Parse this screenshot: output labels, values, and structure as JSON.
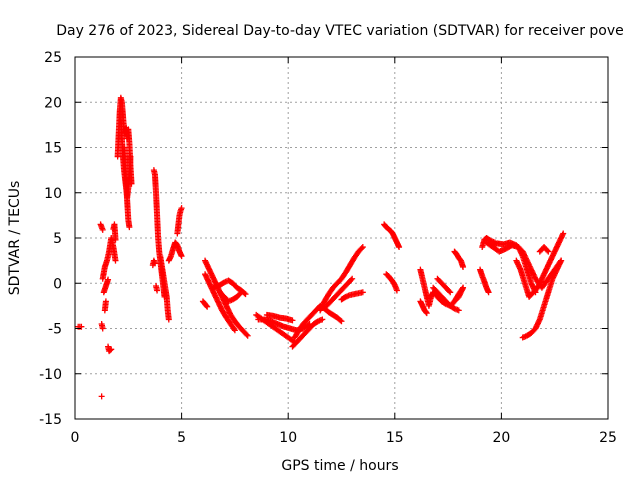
{
  "chart_data": {
    "type": "scatter",
    "title": "Day 276 of 2023, Sidereal Day-to-day VTEC variation (SDTVAR) for receiver pove",
    "xlabel": "GPS time / hours",
    "ylabel": "SDTVAR / TECUs",
    "xlim": [
      0,
      25
    ],
    "ylim": [
      -15,
      25
    ],
    "xticks": [
      0,
      5,
      10,
      15,
      20,
      25
    ],
    "yticks": [
      -15,
      -10,
      -5,
      0,
      5,
      10,
      15,
      20,
      25
    ],
    "grid": true,
    "marker": "+",
    "color": "#ff0000",
    "segments": [
      {
        "x": [
          0.15,
          0.3
        ],
        "y": [
          -4.8,
          -4.8
        ]
      },
      {
        "x": [
          1.2,
          1.25,
          1.3
        ],
        "y": [
          6.5,
          6.2,
          5.9
        ]
      },
      {
        "x": [
          1.25,
          1.3
        ],
        "y": [
          -4.5,
          -5.0
        ]
      },
      {
        "x": [
          1.25
        ],
        "y": [
          -12.5
        ]
      },
      {
        "x": [
          1.3,
          1.4,
          1.5,
          1.6,
          1.7,
          1.8,
          1.9
        ],
        "y": [
          0.5,
          1.8,
          2.5,
          3.5,
          5.0,
          4.0,
          2.5
        ]
      },
      {
        "x": [
          1.35,
          1.45,
          1.55
        ],
        "y": [
          -1.0,
          -0.3,
          0.4
        ]
      },
      {
        "x": [
          1.4,
          1.45
        ],
        "y": [
          -3.0,
          -2.0
        ]
      },
      {
        "x": [
          1.55,
          1.6,
          1.7
        ],
        "y": [
          -7.0,
          -7.5,
          -7.3
        ]
      },
      {
        "x": [
          1.8,
          1.85,
          1.9
        ],
        "y": [
          6.0,
          6.5,
          4.8
        ]
      },
      {
        "x": [
          2.0,
          2.05,
          2.1,
          2.15,
          2.2,
          2.25,
          2.3,
          2.35,
          2.4,
          2.45
        ],
        "y": [
          14.0,
          16.5,
          19.0,
          20.5,
          20.0,
          18.5,
          17.0,
          16.5,
          17.2,
          16.0
        ]
      },
      {
        "x": [
          2.15,
          2.2,
          2.25,
          2.3,
          2.35,
          2.4,
          2.45,
          2.5,
          2.55,
          2.6
        ],
        "y": [
          18.0,
          16.0,
          14.0,
          12.5,
          11.5,
          10.5,
          9.5,
          10.5,
          12.0,
          14.0
        ]
      },
      {
        "x": [
          2.3,
          2.35,
          2.4,
          2.45,
          2.5,
          2.55
        ],
        "y": [
          15.0,
          13.0,
          11.0,
          9.0,
          7.0,
          6.2
        ]
      },
      {
        "x": [
          2.5,
          2.55,
          2.6,
          2.65
        ],
        "y": [
          17.0,
          15.5,
          13.0,
          11.0
        ]
      },
      {
        "x": [
          3.7,
          3.75,
          3.8,
          3.85,
          3.9,
          3.95,
          4.0,
          4.05,
          4.1,
          4.15,
          4.2
        ],
        "y": [
          12.5,
          12.0,
          10.0,
          7.5,
          5.0,
          3.5,
          2.5,
          1.5,
          0.5,
          -0.5,
          -1.5
        ]
      },
      {
        "x": [
          3.65,
          3.7,
          3.75
        ],
        "y": [
          2.0,
          2.5,
          2.2
        ]
      },
      {
        "x": [
          3.8,
          3.85
        ],
        "y": [
          -0.3,
          -0.8
        ]
      },
      {
        "x": [
          4.0,
          4.1,
          4.2,
          4.3,
          4.35,
          4.4
        ],
        "y": [
          3.0,
          1.5,
          0.0,
          -1.5,
          -3.0,
          -4.0
        ]
      },
      {
        "x": [
          4.4,
          4.5,
          4.6,
          4.7,
          4.8,
          4.9,
          5.0
        ],
        "y": [
          2.5,
          3.0,
          3.8,
          4.5,
          4.2,
          3.5,
          3.0
        ]
      },
      {
        "x": [
          4.8,
          4.85,
          4.9,
          4.95,
          5.0
        ],
        "y": [
          5.5,
          6.5,
          7.5,
          8.0,
          8.3
        ]
      },
      {
        "x": [
          6.0,
          6.1,
          6.2
        ],
        "y": [
          -2.0,
          -2.3,
          -2.6
        ]
      },
      {
        "x": [
          6.1,
          6.3,
          6.5,
          6.7,
          6.9,
          7.1,
          7.3,
          7.5,
          7.7,
          7.9,
          8.1
        ],
        "y": [
          2.5,
          1.5,
          0.5,
          -0.5,
          -1.5,
          -2.5,
          -3.5,
          -4.2,
          -4.8,
          -5.3,
          -5.8
        ]
      },
      {
        "x": [
          6.1,
          6.3,
          6.5,
          6.7,
          6.9,
          7.1,
          7.3,
          7.5
        ],
        "y": [
          1.0,
          0.0,
          -1.0,
          -2.0,
          -3.0,
          -3.8,
          -4.5,
          -5.2
        ]
      },
      {
        "x": [
          6.5,
          6.8,
          7.0,
          7.2,
          7.4,
          7.6,
          7.8,
          8.0
        ],
        "y": [
          -0.5,
          -0.2,
          0.1,
          0.3,
          0.0,
          -0.5,
          -0.8,
          -1.2
        ]
      },
      {
        "x": [
          6.8,
          7.0,
          7.2,
          7.4,
          7.6,
          7.8
        ],
        "y": [
          -1.0,
          -1.5,
          -2.0,
          -1.8,
          -1.5,
          -1.0
        ]
      },
      {
        "x": [
          8.5,
          8.8,
          9.1,
          9.4,
          9.7,
          10.0,
          10.3
        ],
        "y": [
          -3.5,
          -4.0,
          -4.5,
          -5.0,
          -5.5,
          -6.0,
          -6.5
        ]
      },
      {
        "x": [
          8.6,
          8.9,
          9.2,
          9.5,
          9.8,
          10.1,
          10.4,
          10.7,
          11.0
        ],
        "y": [
          -4.0,
          -4.0,
          -4.2,
          -4.5,
          -4.8,
          -5.0,
          -5.2,
          -5.0,
          -4.5
        ]
      },
      {
        "x": [
          9.0,
          9.3,
          9.6,
          9.9,
          10.2
        ],
        "y": [
          -3.5,
          -3.6,
          -3.8,
          -3.9,
          -4.1
        ]
      },
      {
        "x": [
          10.2,
          10.4,
          10.6,
          10.8,
          11.0,
          11.2,
          11.4,
          11.6
        ],
        "y": [
          -7.0,
          -6.5,
          -6.0,
          -5.5,
          -5.0,
          -4.5,
          -4.2,
          -4.0
        ]
      },
      {
        "x": [
          10.3,
          10.5,
          10.7,
          10.9,
          11.1,
          11.3,
          11.5,
          11.7,
          11.9,
          12.1,
          12.3,
          12.5
        ],
        "y": [
          -6.0,
          -5.2,
          -4.5,
          -4.0,
          -3.5,
          -3.0,
          -2.5,
          -2.8,
          -3.2,
          -3.5,
          -3.8,
          -4.2
        ]
      },
      {
        "x": [
          11.5,
          11.7,
          11.9,
          12.1,
          12.3,
          12.5,
          12.7,
          12.9,
          13.1,
          13.3,
          13.5
        ],
        "y": [
          -3.0,
          -2.0,
          -1.2,
          -0.5,
          0.0,
          0.5,
          1.2,
          2.0,
          2.8,
          3.5,
          4.0
        ]
      },
      {
        "x": [
          11.8,
          12.0,
          12.2,
          12.4,
          12.6,
          12.8,
          13.0
        ],
        "y": [
          -2.5,
          -2.0,
          -1.5,
          -1.0,
          -0.5,
          0.0,
          0.5
        ]
      },
      {
        "x": [
          12.5,
          12.7,
          12.9,
          13.1,
          13.3,
          13.5
        ],
        "y": [
          -1.8,
          -1.5,
          -1.3,
          -1.2,
          -1.1,
          -1.0
        ]
      },
      {
        "x": [
          14.5,
          14.6,
          14.7,
          14.8,
          14.9,
          15.0,
          15.1,
          15.2
        ],
        "y": [
          6.5,
          6.2,
          6.0,
          5.8,
          5.5,
          5.0,
          4.5,
          4.0
        ]
      },
      {
        "x": [
          14.6,
          14.7,
          14.8,
          14.9,
          15.0,
          15.1
        ],
        "y": [
          1.0,
          0.8,
          0.5,
          0.2,
          -0.2,
          -0.8
        ]
      },
      {
        "x": [
          16.2,
          16.3,
          16.4,
          16.5,
          16.6,
          16.7,
          16.8,
          17.0,
          17.2,
          17.4,
          17.6,
          17.8,
          18.0,
          18.2
        ],
        "y": [
          1.5,
          0.5,
          -0.5,
          -1.5,
          -2.5,
          -1.5,
          -1.0,
          -1.5,
          -2.0,
          -2.3,
          -2.5,
          -2.0,
          -1.5,
          -0.5
        ]
      },
      {
        "x": [
          16.2,
          16.3,
          16.4,
          16.5
        ],
        "y": [
          -2.0,
          -2.5,
          -3.0,
          -3.3
        ]
      },
      {
        "x": [
          16.8,
          17.0,
          17.2,
          17.4,
          17.6,
          17.8,
          18.0
        ],
        "y": [
          -0.5,
          -1.0,
          -1.5,
          -2.0,
          -2.5,
          -2.8,
          -3.0
        ]
      },
      {
        "x": [
          17.0,
          17.2,
          17.4,
          17.6
        ],
        "y": [
          0.5,
          0.0,
          -0.5,
          -1.0
        ]
      },
      {
        "x": [
          17.6,
          17.8,
          18.0,
          18.2
        ],
        "y": [
          -2.5,
          -2.0,
          -1.2,
          -0.5
        ]
      },
      {
        "x": [
          17.8,
          17.9,
          18.0,
          18.1,
          18.2
        ],
        "y": [
          3.5,
          3.2,
          2.8,
          2.5,
          1.8
        ]
      },
      {
        "x": [
          19.0,
          19.1,
          19.2,
          19.3,
          19.4
        ],
        "y": [
          1.5,
          0.8,
          0.2,
          -0.5,
          -1.0
        ]
      },
      {
        "x": [
          19.1,
          19.2,
          19.3,
          19.5,
          19.7
        ],
        "y": [
          4.0,
          4.8,
          5.0,
          4.7,
          4.5
        ]
      },
      {
        "x": [
          19.3,
          19.6,
          19.9,
          20.2,
          20.5,
          20.8,
          21.0,
          21.2,
          21.4,
          21.6
        ],
        "y": [
          4.5,
          4.0,
          3.5,
          3.8,
          4.2,
          4.0,
          3.0,
          1.5,
          0.0,
          -1.0
        ]
      },
      {
        "x": [
          19.5,
          19.8,
          20.1,
          20.4,
          20.7,
          21.0,
          21.3,
          21.6,
          21.9,
          22.2,
          22.5,
          22.8
        ],
        "y": [
          4.2,
          4.4,
          4.3,
          4.5,
          4.2,
          3.5,
          2.0,
          0.5,
          -0.5,
          0.5,
          1.5,
          2.5
        ]
      },
      {
        "x": [
          20.7,
          20.9,
          21.1,
          21.3,
          21.5,
          21.7,
          21.9,
          22.1,
          22.3,
          22.5,
          22.7,
          22.9
        ],
        "y": [
          2.5,
          1.5,
          0.0,
          -1.5,
          -1.0,
          -0.5,
          0.5,
          1.5,
          2.5,
          3.5,
          4.5,
          5.5
        ]
      },
      {
        "x": [
          21.0,
          21.2,
          21.4,
          21.6,
          21.8,
          22.0,
          22.2,
          22.4,
          22.6,
          22.8
        ],
        "y": [
          -6.0,
          -5.8,
          -5.5,
          -5.0,
          -4.0,
          -2.5,
          -1.0,
          0.5,
          1.5,
          2.5
        ]
      },
      {
        "x": [
          21.8,
          22.0,
          22.2
        ],
        "y": [
          3.5,
          4.0,
          3.5
        ]
      }
    ]
  }
}
